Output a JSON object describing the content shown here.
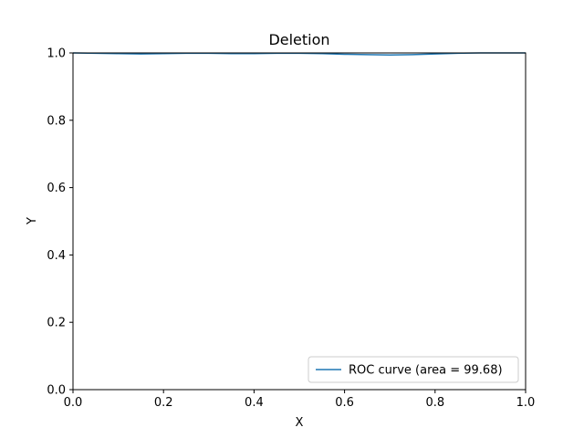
{
  "chart_data": {
    "type": "line",
    "title": "Deletion",
    "xlabel": "X",
    "ylabel": "Y",
    "xlim": [
      0.0,
      1.0
    ],
    "ylim": [
      0.0,
      1.0
    ],
    "xticks": [
      "0.0",
      "0.2",
      "0.4",
      "0.6",
      "0.8",
      "1.0"
    ],
    "yticks": [
      "0.0",
      "0.2",
      "0.4",
      "0.6",
      "0.8",
      "1.0"
    ],
    "grid": false,
    "legend_position": "lower-right",
    "series": [
      {
        "name": "ROC curve (area = 99.68)",
        "color": "#1f77b4",
        "x": [
          0.0,
          0.05,
          0.1,
          0.15,
          0.2,
          0.25,
          0.3,
          0.35,
          0.4,
          0.45,
          0.5,
          0.55,
          0.6,
          0.65,
          0.7,
          0.75,
          0.8,
          0.85,
          0.9,
          0.95,
          1.0
        ],
        "y": [
          1.0,
          0.999,
          0.998,
          0.997,
          0.998,
          0.999,
          0.999,
          0.998,
          0.998,
          0.999,
          0.999,
          0.998,
          0.996,
          0.995,
          0.994,
          0.995,
          0.997,
          0.999,
          1.0,
          1.0,
          1.0
        ]
      }
    ]
  }
}
